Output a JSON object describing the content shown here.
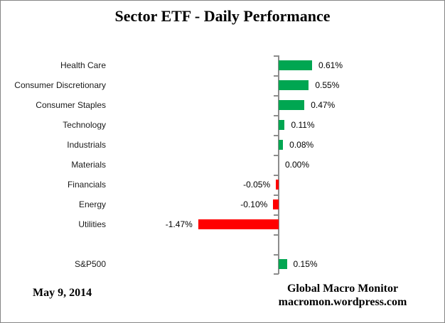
{
  "title": "Sector ETF - Daily Performance",
  "footer": {
    "date": "May 9, 2014",
    "credit_line1": "Global Macro Monitor",
    "credit_line2": "macromon.wordpress.com"
  },
  "colors": {
    "positive": "#00A651",
    "negative": "#FF0000",
    "axis": "#8C8C8C"
  },
  "chart_data": {
    "type": "bar",
    "orientation": "horizontal",
    "title": "Sector ETF - Daily Performance",
    "unit": "%",
    "categories": [
      "Health Care",
      "Consumer Discretionary",
      "Consumer Staples",
      "Technology",
      "Industrials",
      "Materials",
      "Financials",
      "Energy",
      "Utilities",
      "",
      "S&P500"
    ],
    "values": [
      0.61,
      0.55,
      0.47,
      0.11,
      0.08,
      0.0,
      -0.05,
      -0.1,
      -1.47,
      null,
      0.15
    ],
    "data_labels": [
      "0.61%",
      "0.55%",
      "0.47%",
      "0.11%",
      "0.08%",
      "0.00%",
      "-0.05%",
      "-0.10%",
      "-1.47%",
      "",
      "0.15%"
    ],
    "xlabel": "",
    "ylabel": "",
    "grid": false,
    "legend": false,
    "value_axis_visible": false,
    "category_axis_line": true,
    "data_label_position": "outside-end",
    "color_rule": "green if value >= 0, red if value < 0"
  }
}
